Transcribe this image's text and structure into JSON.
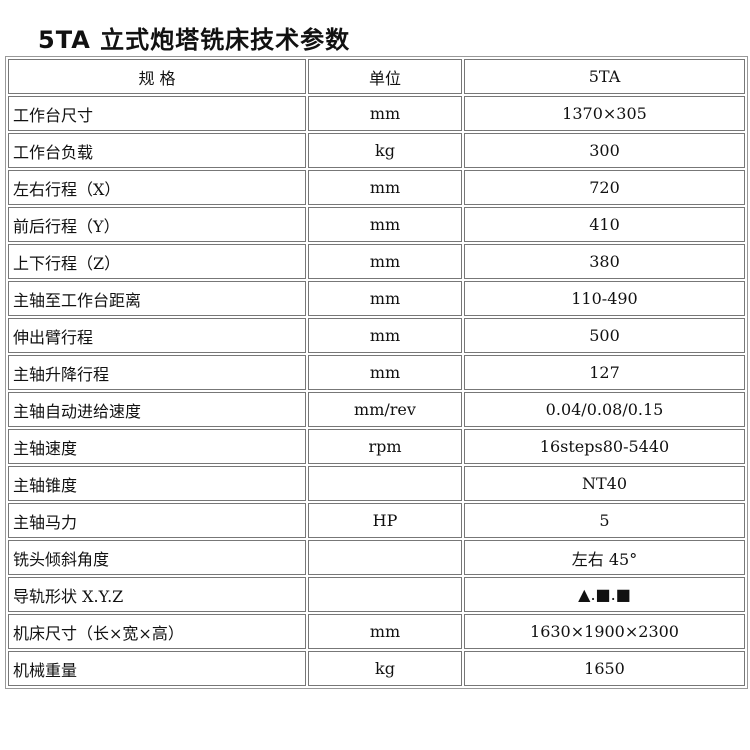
{
  "header": {
    "title": "5TA 立式炮塔铣床技术参数"
  },
  "table": {
    "columns": [
      "规 格",
      "单位",
      "5TA"
    ],
    "rows": [
      [
        "工作台尺寸",
        "mm",
        "1370×305"
      ],
      [
        "工作台负载",
        "kg",
        "300"
      ],
      [
        "左右行程（X）",
        "mm",
        "720"
      ],
      [
        "前后行程（Y）",
        "mm",
        "410"
      ],
      [
        "上下行程（Z）",
        "mm",
        "380"
      ],
      [
        "主轴至工作台距离",
        "mm",
        "110-490"
      ],
      [
        "伸出臂行程",
        "mm",
        "500"
      ],
      [
        "主轴升降行程",
        "mm",
        "127"
      ],
      [
        "主轴自动进给速度",
        "mm/rev",
        "0.04/0.08/0.15"
      ],
      [
        "主轴速度",
        "rpm",
        "16steps80-5440"
      ],
      [
        "主轴锥度",
        null,
        "NT40"
      ],
      [
        "主轴马力",
        "HP",
        "5"
      ],
      [
        "铣头倾斜角度",
        null,
        "左右 45°"
      ],
      [
        "导轨形状 X.Y.Z",
        null,
        "▲.■.■"
      ],
      [
        "机床尺寸（长×宽×高）",
        "mm",
        "1630×1900×2300"
      ],
      [
        "机械重量",
        "kg",
        "1650"
      ]
    ]
  }
}
